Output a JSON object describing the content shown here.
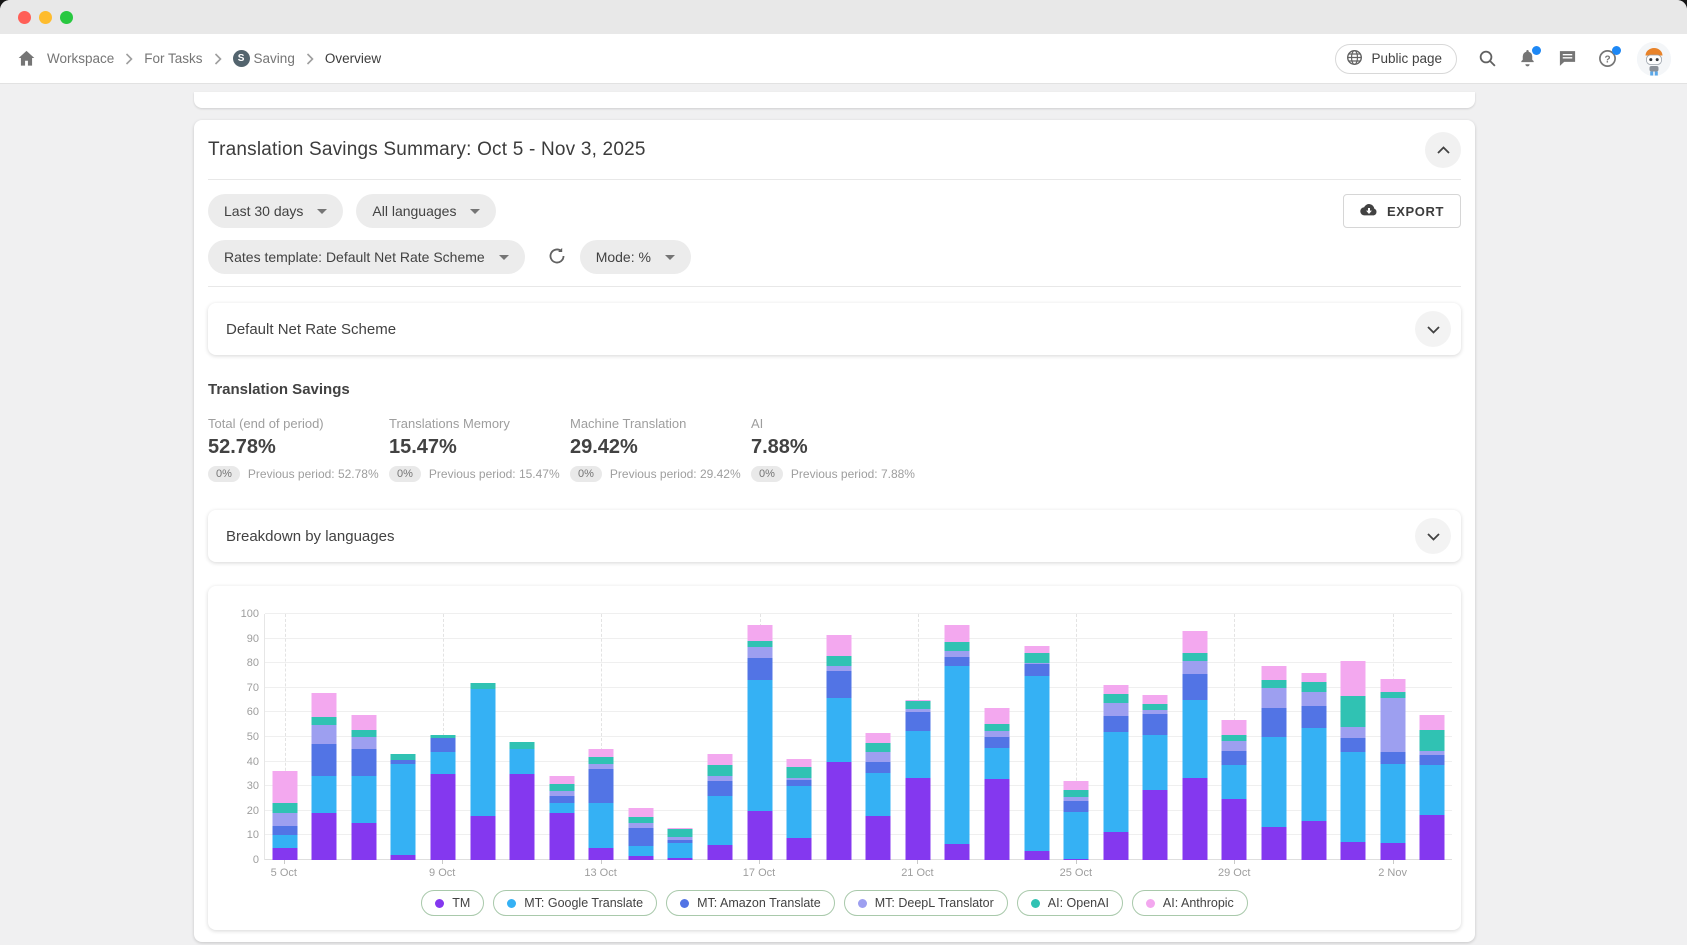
{
  "breadcrumb": {
    "items": [
      "Workspace",
      "For Tasks",
      "Saving",
      "Overview"
    ],
    "project_badge": "S"
  },
  "topbar": {
    "public_page_label": "Public page"
  },
  "summary": {
    "title": "Translation Savings Summary: Oct 5 - Nov 3, 2025",
    "filters": {
      "date_range": "Last 30 days",
      "languages": "All languages",
      "rates_template": "Rates template: Default Net Rate Scheme",
      "mode": "Mode: %"
    },
    "export_label": "EXPORT",
    "scheme_card_title": "Default Net Rate Scheme",
    "savings": {
      "heading": "Translation Savings",
      "stats": [
        {
          "label": "Total (end of period)",
          "value": "52.78%",
          "delta": "0%",
          "previous": "Previous period: 52.78%"
        },
        {
          "label": "Translations Memory",
          "value": "15.47%",
          "delta": "0%",
          "previous": "Previous period: 15.47%"
        },
        {
          "label": "Machine Translation",
          "value": "29.42%",
          "delta": "0%",
          "previous": "Previous period: 29.42%"
        },
        {
          "label": "AI",
          "value": "7.88%",
          "delta": "0%",
          "previous": "Previous period: 7.88%"
        }
      ]
    },
    "breakdown_card_title": "Breakdown by languages"
  },
  "chart_data": {
    "type": "bar",
    "stacked": true,
    "ylim": [
      0,
      100
    ],
    "yticks": [
      0,
      10,
      20,
      30,
      40,
      50,
      60,
      70,
      80,
      90,
      100
    ],
    "grid": "horizontal solid, dashed vertical at labeled ticks",
    "legend_position": "bottom",
    "label_every": 4,
    "x_labels_shown": [
      "5 Oct",
      "9 Oct",
      "13 Oct",
      "17 Oct",
      "21 Oct",
      "25 Oct",
      "29 Oct",
      "2 Nov"
    ],
    "categories": [
      "5 Oct",
      "6 Oct",
      "7 Oct",
      "8 Oct",
      "9 Oct",
      "10 Oct",
      "11 Oct",
      "12 Oct",
      "13 Oct",
      "14 Oct",
      "15 Oct",
      "16 Oct",
      "17 Oct",
      "18 Oct",
      "19 Oct",
      "20 Oct",
      "21 Oct",
      "22 Oct",
      "23 Oct",
      "24 Oct",
      "25 Oct",
      "26 Oct",
      "27 Oct",
      "28 Oct",
      "29 Oct",
      "30 Oct",
      "31 Oct",
      "1 Nov",
      "2 Nov",
      "3 Nov"
    ],
    "series": [
      {
        "name": "TM",
        "color": "#8438ef",
        "values": [
          5,
          19,
          15,
          2,
          35,
          18,
          35,
          19,
          5,
          1.5,
          1,
          6,
          20,
          9,
          40,
          18,
          33.5,
          6.5,
          33,
          3.5,
          0.5,
          11.5,
          28.5,
          33.5,
          25,
          13.5,
          16,
          7.5,
          7,
          18.5
        ]
      },
      {
        "name": "MT: Google Translate",
        "color": "#35b1f4",
        "values": [
          5,
          15,
          19,
          37,
          9,
          51.5,
          10,
          4,
          18,
          4,
          6,
          20,
          53,
          21,
          26,
          17.5,
          19,
          72.5,
          12.5,
          71.5,
          19,
          40.5,
          22.5,
          31.5,
          13.5,
          36.5,
          37.5,
          36.5,
          32,
          20
        ]
      },
      {
        "name": "MT: Amazon Translate",
        "color": "#5274e5",
        "values": [
          4,
          13,
          11,
          1.5,
          5.5,
          0,
          0,
          3,
          14,
          7.5,
          1,
          6,
          9,
          2.5,
          11,
          4.5,
          7.5,
          3.5,
          4.5,
          4.5,
          4.5,
          6.5,
          8.5,
          10.5,
          6,
          12,
          9,
          5.5,
          5,
          4
        ]
      },
      {
        "name": "MT: DeepL Translator",
        "color": "#9d9ff0",
        "values": [
          5,
          8,
          5,
          0,
          0,
          0,
          0,
          2,
          2,
          2,
          1.5,
          2,
          4.5,
          1,
          2,
          4,
          1.5,
          2.5,
          2.5,
          0.5,
          1.5,
          5.5,
          1.5,
          5.5,
          4,
          8,
          6,
          4.5,
          22,
          2
        ]
      },
      {
        "name": "AI: OpenAI",
        "color": "#30c2b3",
        "values": [
          4,
          3,
          3,
          2.5,
          1.5,
          2.5,
          3,
          3,
          3,
          2.5,
          3,
          4.5,
          2.5,
          4.5,
          4,
          3.5,
          3,
          3.5,
          3,
          4,
          3,
          3.5,
          2.5,
          3,
          2.5,
          3,
          4,
          12.5,
          2.5,
          8.5
        ]
      },
      {
        "name": "AI: Anthropic",
        "color": "#f3a8ef",
        "values": [
          13,
          10,
          6,
          0,
          0,
          0,
          0,
          3,
          3,
          3.5,
          0.5,
          4.5,
          6.5,
          3,
          8.5,
          4,
          0.5,
          7,
          6.5,
          3,
          3.5,
          3.5,
          3.5,
          9,
          6,
          6,
          3.5,
          14.5,
          5,
          6
        ]
      }
    ]
  }
}
